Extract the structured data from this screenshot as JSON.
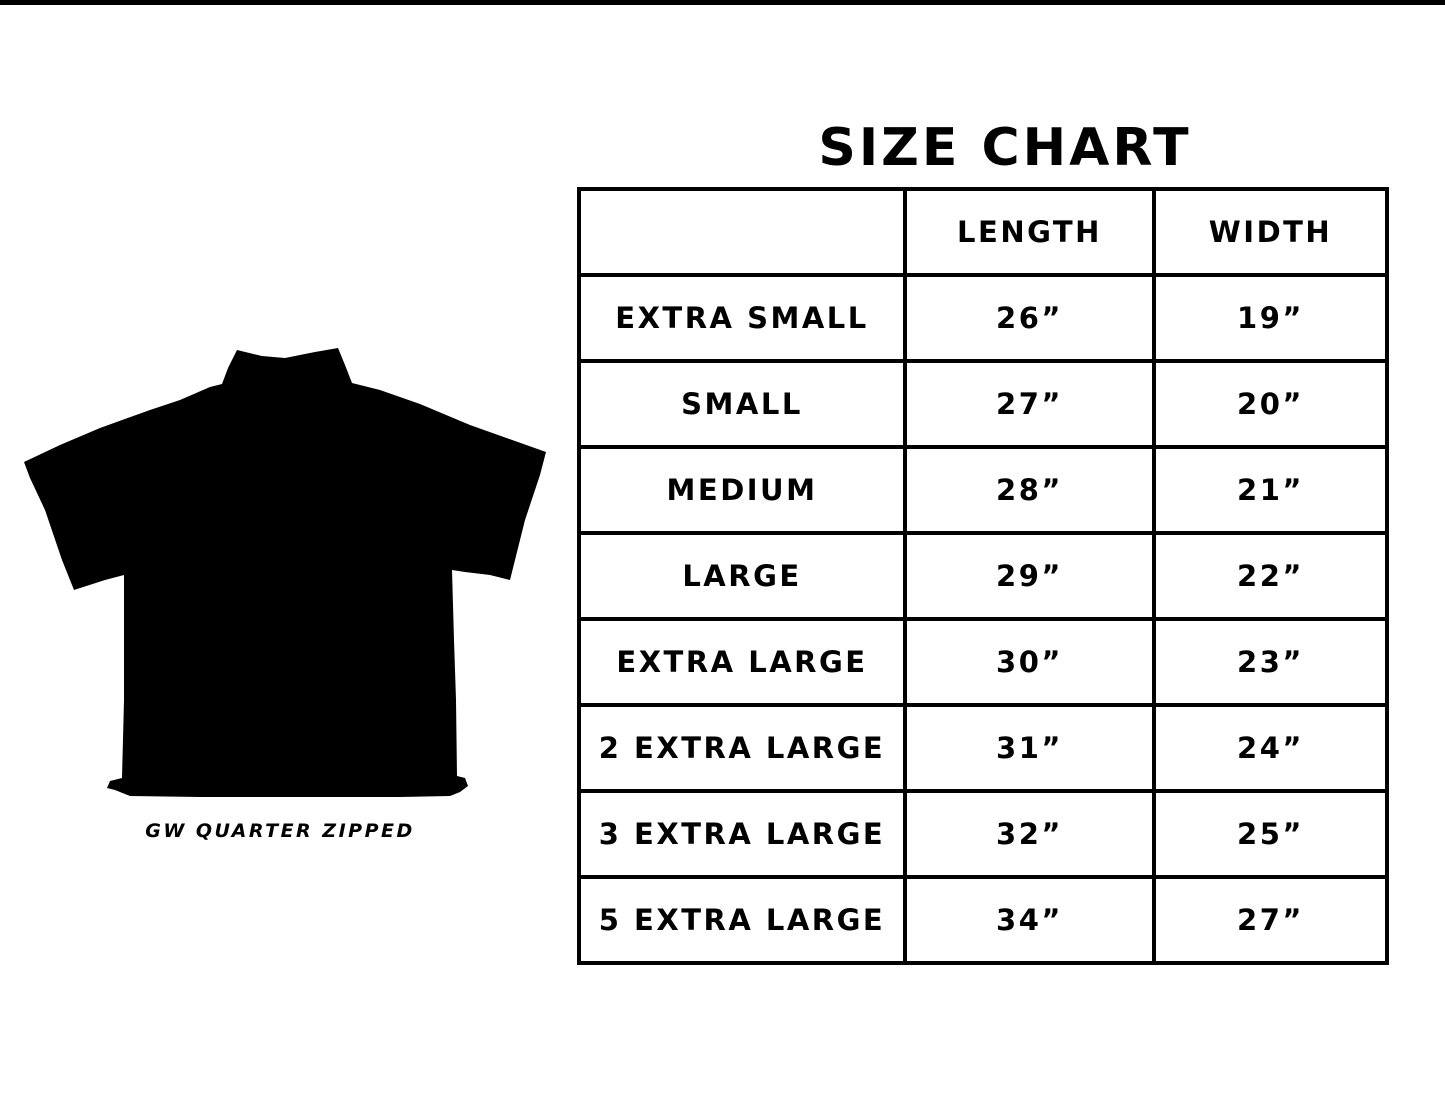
{
  "title": "SIZE CHART",
  "product": {
    "caption": "GW QUARTER ZIPPED",
    "image": "black-quarter-zip-shirt-silhouette"
  },
  "table": {
    "headers": [
      "",
      "LENGTH",
      "WIDTH"
    ],
    "rows": [
      {
        "size": "EXTRA SMALL",
        "length": "26”",
        "width": "19”"
      },
      {
        "size": "SMALL",
        "length": "27”",
        "width": "20”"
      },
      {
        "size": "MEDIUM",
        "length": "28”",
        "width": "21”"
      },
      {
        "size": "LARGE",
        "length": "29”",
        "width": "22”"
      },
      {
        "size": "EXTRA LARGE",
        "length": "30”",
        "width": "23”"
      },
      {
        "size": "2 EXTRA LARGE",
        "length": "31”",
        "width": "24”"
      },
      {
        "size": "3 EXTRA LARGE",
        "length": "32”",
        "width": "25”"
      },
      {
        "size": "5 EXTRA LARGE",
        "length": "34”",
        "width": "27”"
      }
    ]
  }
}
